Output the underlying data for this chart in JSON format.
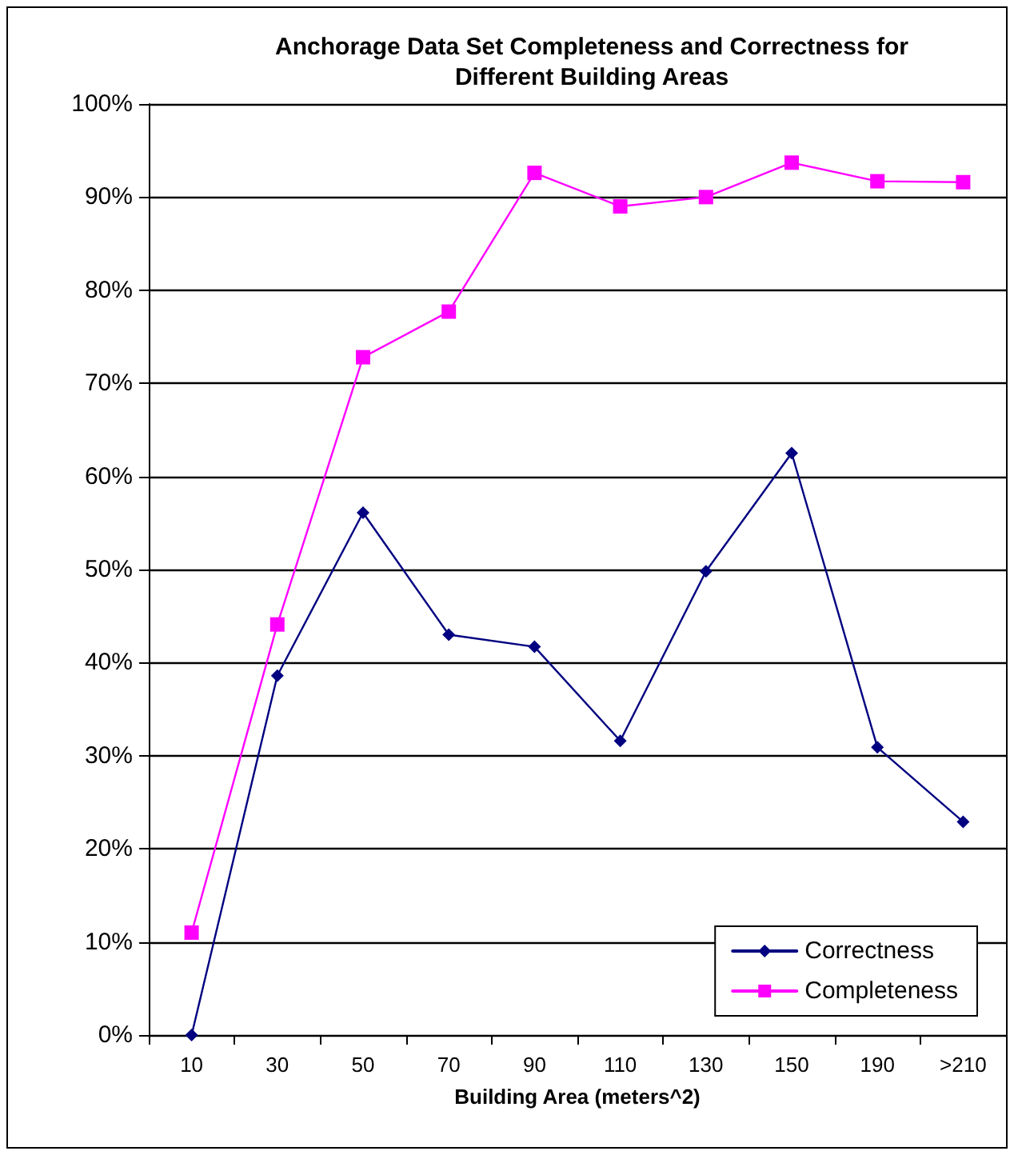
{
  "chart_data": {
    "type": "line",
    "title": "Anchorage Data Set Completeness and Correctness for\nDifferent Building Areas",
    "xlabel": "Building Area (meters^2)",
    "categories": [
      "10",
      "30",
      "50",
      "70",
      "90",
      "110",
      "130",
      "150",
      "190",
      ">210"
    ],
    "series": [
      {
        "name": "Correctness",
        "color": "#000080",
        "marker": "diamond",
        "values": [
          0,
          38.6,
          56.1,
          43.0,
          41.7,
          31.6,
          49.8,
          62.5,
          30.9,
          22.9
        ]
      },
      {
        "name": "Completeness",
        "color": "#ff00ff",
        "marker": "square",
        "values": [
          11.0,
          44.1,
          72.8,
          77.7,
          92.6,
          89.0,
          90.0,
          93.7,
          91.7,
          91.6
        ]
      }
    ],
    "ylim": [
      0,
      100
    ],
    "yticks": [
      {
        "value": 0,
        "label": "0%"
      },
      {
        "value": 10,
        "label": "10%"
      },
      {
        "value": 20,
        "label": "20%"
      },
      {
        "value": 30,
        "label": "30%"
      },
      {
        "value": 40,
        "label": "40%"
      },
      {
        "value": 50,
        "label": "50%"
      },
      {
        "value": 60,
        "label": "60%"
      },
      {
        "value": 70,
        "label": "70%"
      },
      {
        "value": 80,
        "label": "80%"
      },
      {
        "value": 90,
        "label": "90%"
      },
      {
        "value": 100,
        "label": "100%"
      }
    ],
    "grid": "y",
    "legend": "bottom right",
    "line_style": "solid"
  }
}
